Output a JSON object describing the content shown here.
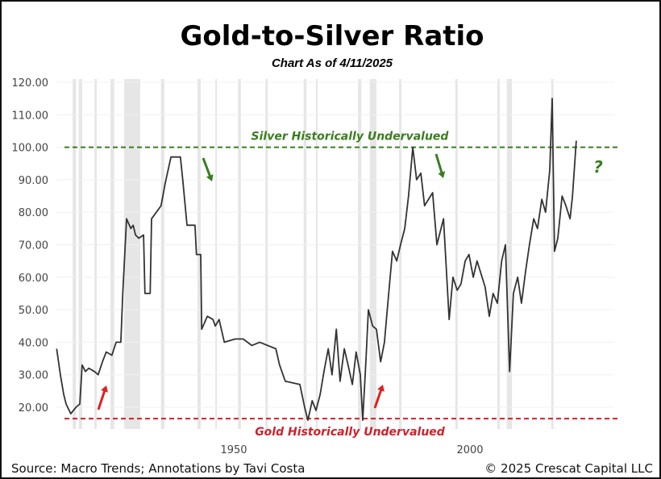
{
  "chart_data": {
    "type": "line",
    "title": "Gold-to-Silver Ratio",
    "subtitle": "Chart As of 4/11/2025",
    "xlabel": "",
    "ylabel": "",
    "xlim": [
      1912,
      2027
    ],
    "ylim": [
      15,
      120
    ],
    "x_ticks": [
      1950,
      2000
    ],
    "x_tick_labels": [
      "1950",
      "2000"
    ],
    "y_ticks": [
      20,
      30,
      40,
      50,
      60,
      70,
      80,
      90,
      100,
      110,
      120
    ],
    "y_tick_labels": [
      "20.00",
      "30.00",
      "40.00",
      "50.00",
      "60.00",
      "70.00",
      "80.00",
      "90.00",
      "100.00",
      "110.00",
      "120.00"
    ],
    "grid": true,
    "series": [
      {
        "color": "#333333",
        "x": [
          1912.5,
          1913.3,
          1914.0,
          1914.5,
          1915.5,
          1916.6,
          1917.4,
          1917.9,
          1918.6,
          1919.3,
          1920.5,
          1921.3,
          1922.2,
          1923.0,
          1924.2,
          1925.1,
          1926.1,
          1926.5,
          1927.3,
          1928.2,
          1928.7,
          1929.2,
          1929.9,
          1930.9,
          1931.2,
          1932.3,
          1932.6,
          1934.6,
          1935.5,
          1936.7,
          1938.7,
          1939.2,
          1940.1,
          1941.8,
          1942.1,
          1943.0,
          1943.2,
          1944.4,
          1945.6,
          1946.1,
          1946.9,
          1948.0,
          1950.3,
          1952.0,
          1953.8,
          1955.5,
          1958.9,
          1959.7,
          1960.9,
          1964.0,
          1965.0,
          1965.7,
          1966.6,
          1967.4,
          1968.3,
          1969.1,
          1970.0,
          1970.8,
          1971.7,
          1972.5,
          1973.4,
          1974.2,
          1975.1,
          1975.9,
          1976.8,
          1977.3,
          1978.0,
          1978.5,
          1979.4,
          1980.2,
          1981.1,
          1981.9,
          1982.8,
          1983.6,
          1984.5,
          1985.3,
          1986.2,
          1987.0,
          1987.9,
          1988.7,
          1989.6,
          1990.4,
          1992.1,
          1993.0,
          1994.4,
          1995.6,
          1996.4,
          1997.3,
          1998.1,
          1999.0,
          1999.8,
          2000.7,
          2001.5,
          2003.2,
          2004.1,
          2004.9,
          2005.8,
          2006.7,
          2007.5,
          2008.4,
          2009.2,
          2010.1,
          2010.9,
          2011.8,
          2012.6,
          2013.5,
          2014.3,
          2015.2,
          2016.0,
          2016.9,
          2017.4,
          2017.9,
          2018.6,
          2019.5,
          2020.3,
          2021.2,
          2021.7,
          2022.5
        ],
        "values": [
          38,
          30,
          24,
          21,
          18,
          20,
          21,
          33,
          31,
          32,
          31,
          30,
          34,
          37,
          36,
          40,
          40,
          55,
          78,
          75,
          76,
          73,
          72,
          73,
          55,
          55,
          78,
          82,
          89,
          97,
          97,
          90,
          76,
          76,
          67,
          67,
          44,
          48,
          47,
          45,
          47,
          40,
          41,
          41,
          39,
          40,
          38,
          33,
          28,
          27,
          20,
          16,
          22,
          19,
          24,
          31,
          38,
          30,
          44,
          28,
          38,
          33,
          27,
          37,
          30,
          16,
          35,
          50,
          45,
          44,
          34,
          40,
          55,
          68,
          65,
          70,
          75,
          85,
          100,
          90,
          92,
          82,
          86,
          70,
          78,
          47,
          60,
          56,
          58,
          65,
          67,
          60,
          65,
          57,
          48,
          55,
          52,
          65,
          70,
          31,
          55,
          60,
          52,
          62,
          70,
          78,
          75,
          84,
          80,
          93,
          115,
          68,
          72,
          85,
          82,
          78,
          85,
          102
        ]
      }
    ],
    "shaded_periods": [
      [
        1915.9,
        1916.6
      ],
      [
        1917.2,
        1917.9
      ],
      [
        1920.5,
        1921.0
      ],
      [
        1923.9,
        1924.7
      ],
      [
        1926.8,
        1930.2
      ],
      [
        1934.6,
        1935.3
      ],
      [
        1942.3,
        1943.0
      ],
      [
        1946.1,
        1946.4
      ],
      [
        1950.9,
        1951.5
      ],
      [
        1956.7,
        1957.2
      ],
      [
        1964.8,
        1965.4
      ],
      [
        1967.4,
        1967.7
      ],
      [
        1976.3,
        1977.0
      ],
      [
        1978.8,
        1980.2
      ],
      [
        1985.0,
        1985.5
      ],
      [
        1996.9,
        1997.4
      ],
      [
        2005.8,
        2006.3
      ],
      [
        2007.8,
        2008.9
      ],
      [
        2017.2,
        2017.7
      ]
    ],
    "reference_lines": [
      {
        "value": 100,
        "label": "Silver Historically Undervalued",
        "color": "#3a7d1e"
      },
      {
        "value": 16.5,
        "label": "Gold Historically Undervalued",
        "color": "#d0202a"
      }
    ],
    "annotations": {
      "down_arrows_color": "#3a7d1e",
      "up_arrows_color": "#e02020",
      "question_mark": "?"
    }
  },
  "footer": {
    "source": "Source: Macro Trends; Annotations by Tavi Costa",
    "copyright": "© 2025 Crescat Capital LLC"
  }
}
